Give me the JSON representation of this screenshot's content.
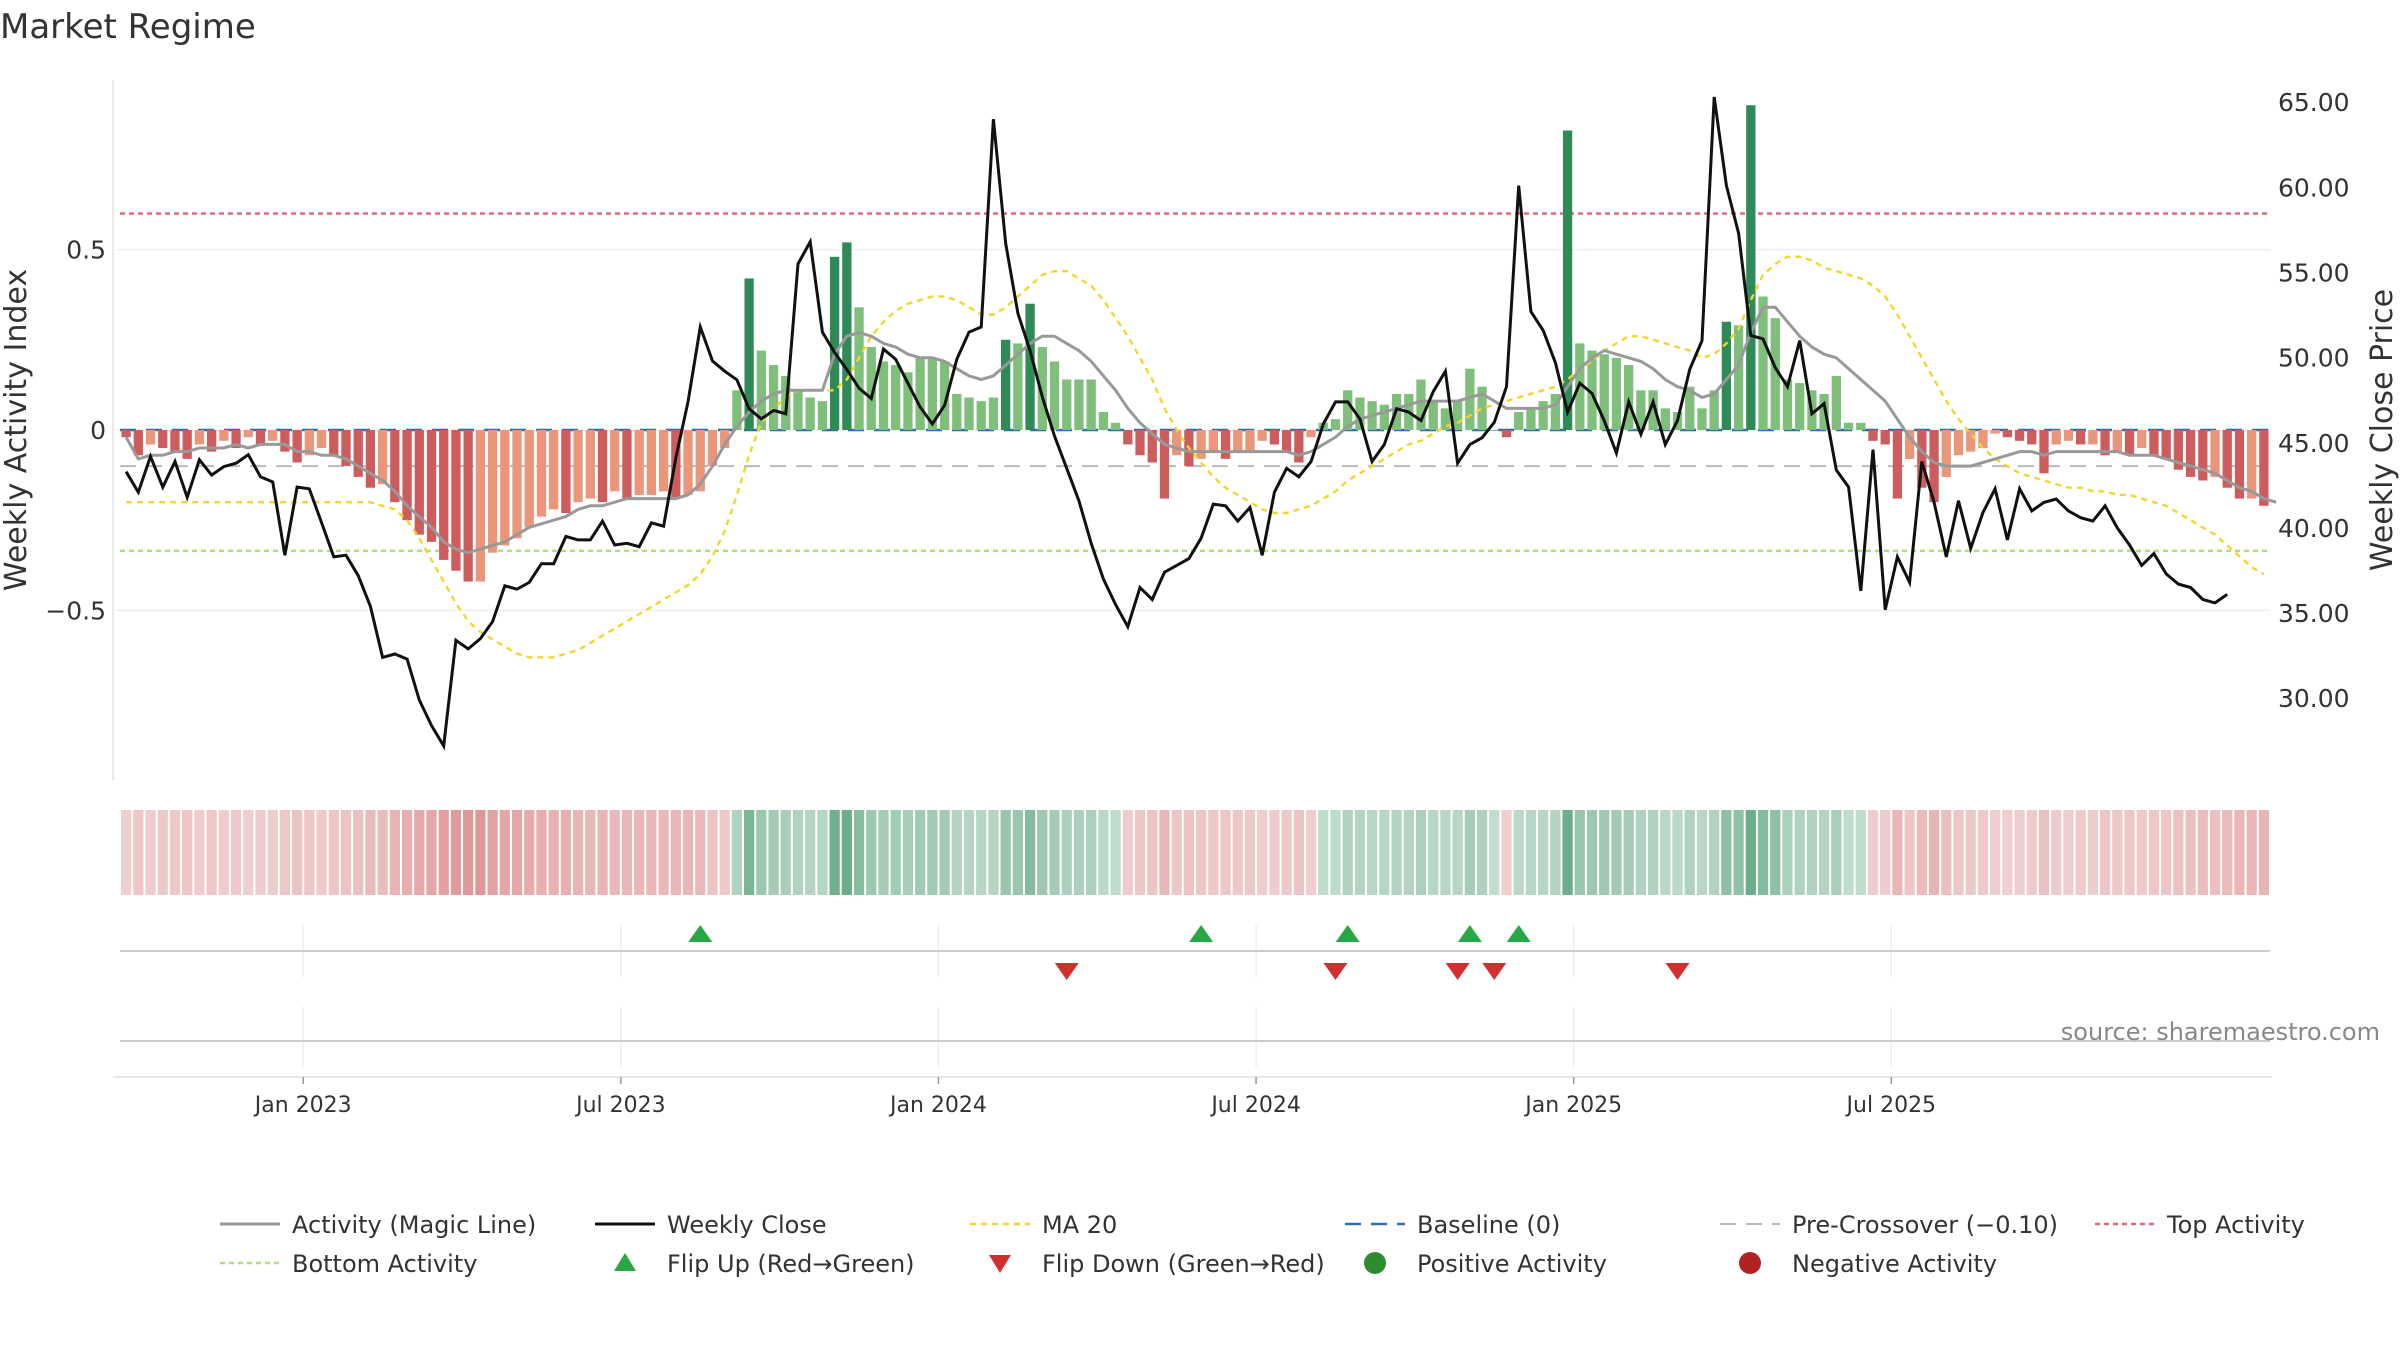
{
  "title": "Market Regime",
  "source": "source: sharemaestro.com",
  "colors": {
    "pos_strong": "#2e8b57",
    "pos_light": "#7fbf7b",
    "neg_strong": "#cd5c5c",
    "neg_light": "#e9967a",
    "magic": "#999999",
    "close": "#111111",
    "ma": "#f2d62e",
    "baseline": "#2a6fb0",
    "pre": "#bbbbbb",
    "top": "#e06a7a",
    "bottom": "#b5dd7a",
    "flip_up": "#27a844",
    "flip_down": "#d22f2f",
    "pos_dot": "#2e8b2e",
    "neg_dot": "#b22222"
  },
  "chart_data": {
    "type": "bar",
    "left_axis": {
      "label": "Weekly Activity Index",
      "ticks": [
        -0.5,
        0,
        0.5
      ],
      "tick_labels": [
        "−0.5",
        "0",
        "0.5"
      ],
      "range": [
        -0.97,
        0.97
      ]
    },
    "right_axis": {
      "label": "Weekly Close Price",
      "ticks": [
        30,
        35,
        40,
        45,
        50,
        55,
        60,
        65
      ],
      "tick_labels": [
        "30.00",
        "35.00",
        "40.00",
        "45.00",
        "50.00",
        "55.00",
        "60.00",
        "65.00"
      ],
      "range": [
        25.2,
        66.3
      ]
    },
    "x_ticks": [
      "Jan 2023",
      "Jul 2023",
      "Jan 2024",
      "Jul 2024",
      "Jan 2025",
      "Jul 2025"
    ],
    "x_tick_weeks": [
      15,
      41,
      67,
      93,
      119,
      145
    ],
    "reference_lines": {
      "top": 0.6,
      "bottom": -0.335,
      "baseline": 0,
      "pre_crossover": -0.1
    },
    "activity": [
      -0.02,
      -0.07,
      -0.04,
      -0.05,
      -0.06,
      -0.08,
      -0.04,
      -0.06,
      -0.03,
      -0.05,
      -0.02,
      -0.04,
      -0.03,
      -0.06,
      -0.09,
      -0.07,
      -0.05,
      -0.07,
      -0.1,
      -0.13,
      -0.16,
      -0.15,
      -0.2,
      -0.25,
      -0.29,
      -0.31,
      -0.36,
      -0.39,
      -0.42,
      -0.42,
      -0.34,
      -0.32,
      -0.3,
      -0.27,
      -0.24,
      -0.22,
      -0.23,
      -0.2,
      -0.19,
      -0.2,
      -0.17,
      -0.19,
      -0.18,
      -0.18,
      -0.17,
      -0.19,
      -0.18,
      -0.17,
      -0.1,
      -0.05,
      0.11,
      0.42,
      0.22,
      0.18,
      0.15,
      0.11,
      0.09,
      0.08,
      0.48,
      0.52,
      0.34,
      0.23,
      0.19,
      0.18,
      0.16,
      0.2,
      0.2,
      0.19,
      0.1,
      0.09,
      0.08,
      0.09,
      0.25,
      0.24,
      0.35,
      0.23,
      0.19,
      0.14,
      0.14,
      0.14,
      0.05,
      0.02,
      -0.04,
      -0.07,
      -0.09,
      -0.19,
      -0.07,
      -0.1,
      -0.08,
      -0.06,
      -0.08,
      -0.06,
      -0.06,
      -0.03,
      -0.04,
      -0.06,
      -0.09,
      -0.02,
      0.02,
      0.03,
      0.11,
      0.09,
      0.08,
      0.07,
      0.1,
      0.1,
      0.14,
      0.08,
      0.06,
      0.08,
      0.17,
      0.12,
      0.0,
      -0.02,
      0.05,
      0.06,
      0.08,
      0.1,
      0.83,
      0.24,
      0.22,
      0.21,
      0.2,
      0.18,
      0.11,
      0.11,
      0.06,
      0.05,
      0.12,
      0.06,
      0.11,
      0.3,
      0.29,
      0.9,
      0.37,
      0.31,
      0.14,
      0.13,
      0.11,
      0.1,
      0.15,
      0.02,
      0.02,
      -0.03,
      -0.04,
      -0.19,
      -0.08,
      -0.16,
      -0.2,
      -0.13,
      -0.07,
      -0.06,
      -0.05,
      -0.01,
      -0.02,
      -0.03,
      -0.04,
      -0.12,
      -0.04,
      -0.03,
      -0.04,
      -0.04,
      -0.07,
      -0.06,
      -0.07,
      -0.05,
      -0.07,
      -0.08,
      -0.11,
      -0.13,
      -0.14,
      -0.13,
      -0.16,
      -0.19,
      -0.19,
      -0.21
    ],
    "magic_line": [
      -0.02,
      -0.08,
      -0.07,
      -0.07,
      -0.06,
      -0.06,
      -0.05,
      -0.05,
      -0.05,
      -0.04,
      -0.05,
      -0.04,
      -0.04,
      -0.04,
      -0.06,
      -0.06,
      -0.07,
      -0.07,
      -0.08,
      -0.1,
      -0.12,
      -0.14,
      -0.17,
      -0.21,
      -0.24,
      -0.27,
      -0.31,
      -0.33,
      -0.34,
      -0.33,
      -0.32,
      -0.31,
      -0.29,
      -0.27,
      -0.26,
      -0.25,
      -0.24,
      -0.22,
      -0.21,
      -0.21,
      -0.2,
      -0.19,
      -0.19,
      -0.19,
      -0.19,
      -0.19,
      -0.18,
      -0.15,
      -0.1,
      -0.04,
      0.01,
      0.05,
      0.08,
      0.1,
      0.11,
      0.11,
      0.11,
      0.11,
      0.21,
      0.26,
      0.27,
      0.26,
      0.24,
      0.23,
      0.21,
      0.2,
      0.2,
      0.19,
      0.17,
      0.15,
      0.14,
      0.15,
      0.18,
      0.21,
      0.24,
      0.26,
      0.26,
      0.24,
      0.22,
      0.19,
      0.15,
      0.11,
      0.06,
      0.02,
      -0.01,
      -0.04,
      -0.05,
      -0.06,
      -0.06,
      -0.06,
      -0.06,
      -0.06,
      -0.06,
      -0.06,
      -0.06,
      -0.06,
      -0.07,
      -0.06,
      -0.04,
      -0.02,
      0.01,
      0.03,
      0.04,
      0.05,
      0.06,
      0.07,
      0.08,
      0.08,
      0.08,
      0.08,
      0.09,
      0.1,
      0.08,
      0.06,
      0.06,
      0.06,
      0.06,
      0.07,
      0.12,
      0.17,
      0.2,
      0.22,
      0.21,
      0.2,
      0.19,
      0.17,
      0.14,
      0.12,
      0.11,
      0.09,
      0.1,
      0.14,
      0.18,
      0.27,
      0.34,
      0.34,
      0.3,
      0.26,
      0.23,
      0.21,
      0.2,
      0.17,
      0.14,
      0.11,
      0.08,
      0.03,
      -0.02,
      -0.06,
      -0.09,
      -0.1,
      -0.1,
      -0.1,
      -0.09,
      -0.08,
      -0.07,
      -0.06,
      -0.06,
      -0.07,
      -0.06,
      -0.06,
      -0.06,
      -0.06,
      -0.06,
      -0.06,
      -0.07,
      -0.07,
      -0.07,
      -0.08,
      -0.09,
      -0.1,
      -0.11,
      -0.12,
      -0.14,
      -0.16,
      -0.17,
      -0.19,
      -0.2
    ],
    "ma20": [
      -0.2,
      -0.2,
      -0.2,
      -0.2,
      -0.2,
      -0.2,
      -0.2,
      -0.2,
      -0.2,
      -0.2,
      -0.2,
      -0.2,
      -0.2,
      -0.2,
      -0.2,
      -0.2,
      -0.2,
      -0.2,
      -0.2,
      -0.2,
      -0.2,
      -0.21,
      -0.22,
      -0.25,
      -0.3,
      -0.36,
      -0.42,
      -0.48,
      -0.53,
      -0.56,
      -0.58,
      -0.6,
      -0.62,
      -0.63,
      -0.63,
      -0.63,
      -0.62,
      -0.61,
      -0.59,
      -0.57,
      -0.55,
      -0.53,
      -0.51,
      -0.49,
      -0.47,
      -0.45,
      -0.43,
      -0.4,
      -0.35,
      -0.28,
      -0.18,
      -0.07,
      0.02,
      0.06,
      0.09,
      0.11,
      0.11,
      0.11,
      0.11,
      0.14,
      0.2,
      0.26,
      0.3,
      0.33,
      0.35,
      0.36,
      0.37,
      0.37,
      0.36,
      0.34,
      0.32,
      0.32,
      0.34,
      0.37,
      0.4,
      0.43,
      0.44,
      0.44,
      0.42,
      0.4,
      0.36,
      0.31,
      0.26,
      0.2,
      0.14,
      0.06,
      0.0,
      -0.05,
      -0.09,
      -0.13,
      -0.16,
      -0.18,
      -0.2,
      -0.22,
      -0.23,
      -0.23,
      -0.22,
      -0.21,
      -0.19,
      -0.17,
      -0.14,
      -0.12,
      -0.1,
      -0.08,
      -0.06,
      -0.04,
      -0.03,
      -0.01,
      0.01,
      0.02,
      0.04,
      0.06,
      0.07,
      0.08,
      0.09,
      0.1,
      0.11,
      0.12,
      0.14,
      0.17,
      0.19,
      0.22,
      0.24,
      0.26,
      0.26,
      0.25,
      0.24,
      0.23,
      0.22,
      0.2,
      0.21,
      0.24,
      0.28,
      0.36,
      0.43,
      0.46,
      0.48,
      0.48,
      0.47,
      0.45,
      0.44,
      0.43,
      0.42,
      0.4,
      0.37,
      0.32,
      0.26,
      0.2,
      0.14,
      0.08,
      0.03,
      -0.01,
      -0.05,
      -0.08,
      -0.1,
      -0.12,
      -0.13,
      -0.14,
      -0.15,
      -0.16,
      -0.16,
      -0.17,
      -0.17,
      -0.18,
      -0.18,
      -0.19,
      -0.2,
      -0.21,
      -0.23,
      -0.25,
      -0.27,
      -0.29,
      -0.32,
      -0.35,
      -0.38,
      -0.4
    ],
    "weekly_close": [
      43.3,
      42.1,
      44.2,
      42.4,
      43.9,
      41.8,
      44.0,
      43.1,
      43.6,
      43.8,
      44.3,
      43.0,
      42.7,
      38.4,
      42.4,
      42.3,
      40.3,
      38.3,
      38.4,
      37.2,
      35.4,
      32.4,
      32.6,
      32.3,
      29.9,
      28.4,
      27.2,
      33.4,
      32.9,
      33.5,
      34.5,
      36.6,
      36.4,
      36.8,
      37.9,
      37.9,
      39.5,
      39.3,
      39.3,
      40.4,
      39.0,
      39.1,
      38.9,
      40.3,
      40.1,
      44.1,
      47.4,
      51.8,
      49.8,
      49.2,
      48.7,
      47.0,
      46.4,
      46.9,
      46.7,
      55.5,
      56.8,
      51.5,
      50.3,
      49.3,
      48.2,
      47.6,
      50.5,
      49.9,
      48.5,
      47.1,
      46.1,
      47.2,
      49.9,
      51.5,
      51.8,
      64.0,
      56.7,
      52.6,
      50.4,
      47.7,
      45.4,
      43.5,
      41.6,
      39.1,
      37.0,
      35.5,
      34.2,
      36.5,
      35.8,
      37.4,
      37.8,
      38.2,
      39.4,
      41.4,
      41.3,
      40.4,
      41.2,
      38.4,
      42.1,
      43.5,
      43.0,
      43.9,
      46.1,
      47.4,
      47.4,
      46.4,
      43.9,
      44.9,
      47.0,
      46.8,
      46.3,
      48.0,
      49.2,
      43.8,
      44.9,
      45.3,
      46.2,
      48.3,
      60.1,
      52.7,
      51.6,
      49.7,
      46.8,
      48.5,
      47.9,
      46.3,
      44.4,
      47.4,
      45.5,
      47.4,
      44.9,
      46.3,
      49.3,
      51.0,
      65.3,
      60.1,
      57.3,
      51.3,
      51.1,
      49.4,
      48.3,
      51.0,
      46.7,
      47.3,
      43.4,
      42.4,
      36.3,
      44.6,
      35.2,
      38.3,
      36.8,
      43.9,
      41.5,
      38.3,
      41.6,
      38.8,
      40.9,
      42.3,
      39.3,
      42.3,
      41.0,
      41.5,
      41.7,
      41.0,
      40.6,
      40.4,
      41.3,
      40.0,
      39.0,
      37.8,
      38.5,
      37.3,
      36.7,
      36.5,
      35.8,
      35.6,
      36.1
    ],
    "flip_up_weeks": [
      47,
      88,
      100,
      110,
      114
    ],
    "flip_down_weeks": [
      77,
      99,
      109,
      112,
      127
    ],
    "legend": [
      "Activity (Magic Line)",
      "Weekly Close",
      "MA 20",
      "Baseline (0)",
      "Pre-Crossover (−0.10)",
      "Top Activity",
      "Bottom Activity",
      "Flip Up (Red→Green)",
      "Flip Down (Green→Red)",
      "Positive Activity",
      "Negative Activity"
    ]
  }
}
